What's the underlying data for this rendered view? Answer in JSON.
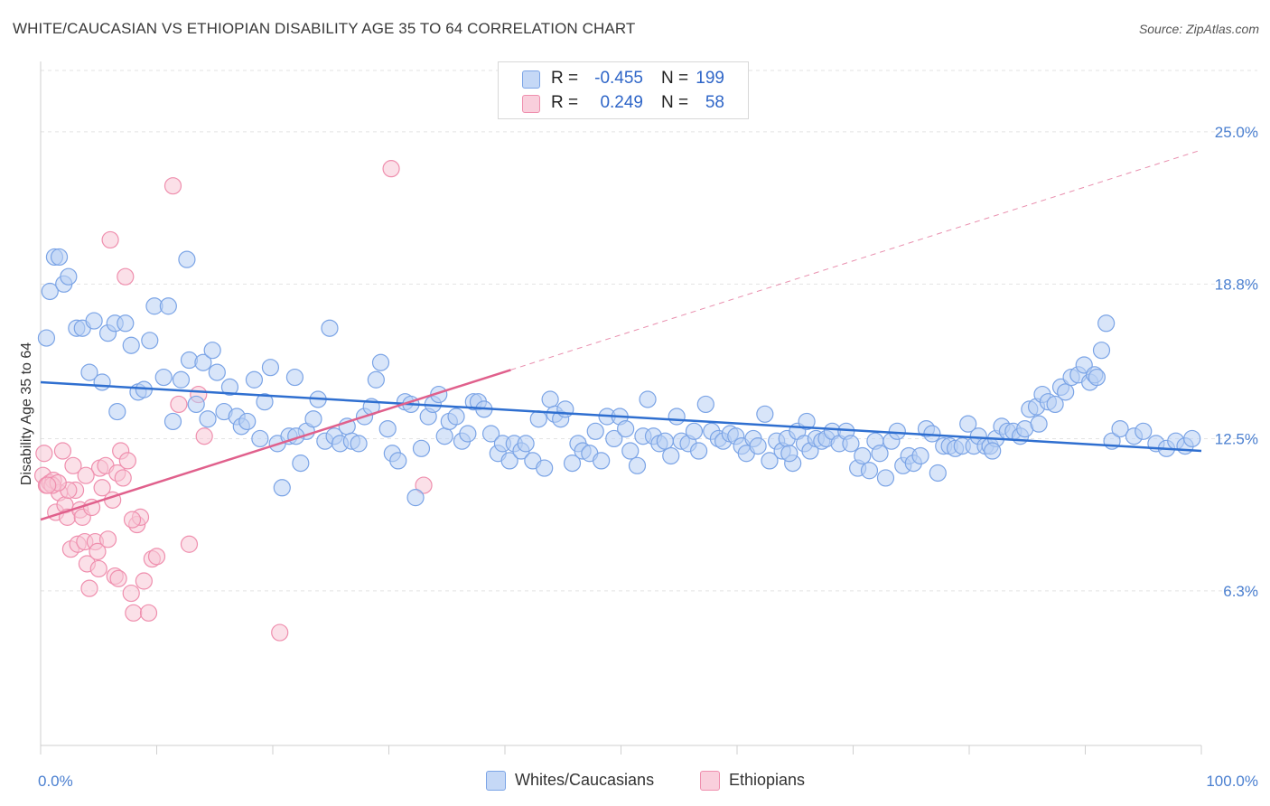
{
  "header": {
    "title": "WHITE/CAUCASIAN VS ETHIOPIAN DISABILITY AGE 35 TO 64 CORRELATION CHART",
    "source": "Source: ZipAtlas.com"
  },
  "legend": {
    "rows": [
      {
        "r_label": "R =",
        "r_value": "-0.455",
        "n_label": "N =",
        "n_value": "199",
        "color": "#9dbdf0"
      },
      {
        "r_label": "R =",
        "r_value": "0.249",
        "n_label": "N =",
        "n_value": "58",
        "color": "#f5a9c0"
      }
    ]
  },
  "bottom_legend": {
    "items": [
      {
        "label": "Whites/Caucasians",
        "color": "#9dbdf0"
      },
      {
        "label": "Ethiopians",
        "color": "#f5a9c0"
      }
    ]
  },
  "colors": {
    "blue_fill": "#b8d0f4",
    "blue_stroke": "#7ba4e6",
    "blue_line": "#2f6fd0",
    "pink_fill": "#f8c6d5",
    "pink_stroke": "#ef8fae",
    "pink_line": "#e0608c",
    "grid": "#e3e3e3",
    "tick_text": "#4a7fd0"
  },
  "chart_data": {
    "type": "scatter",
    "title": "WHITE/CAUCASIAN VS ETHIOPIAN DISABILITY AGE 35 TO 64 CORRELATION CHART",
    "xlabel": "",
    "ylabel": "Disability Age 35 to 64",
    "xlim": [
      0,
      100
    ],
    "ylim": [
      0,
      27.5
    ],
    "x_tick_labels": [
      "0.0%",
      "100.0%"
    ],
    "y_ticks": [
      6.3,
      12.5,
      18.8,
      25.0
    ],
    "y_tick_labels": [
      "6.3%",
      "12.5%",
      "18.8%",
      "25.0%"
    ],
    "grid": true,
    "legend_position": "top-center",
    "series": [
      {
        "name": "Whites/Caucasians",
        "trend": {
          "x": [
            0,
            100
          ],
          "y": [
            14.8,
            12.0
          ]
        },
        "points": [
          [
            0.5,
            16.6
          ],
          [
            0.8,
            18.5
          ],
          [
            1.2,
            19.9
          ],
          [
            1.6,
            19.9
          ],
          [
            2.0,
            18.8
          ],
          [
            2.4,
            19.1
          ],
          [
            3.1,
            17.0
          ],
          [
            3.6,
            17.0
          ],
          [
            4.2,
            15.2
          ],
          [
            4.6,
            17.3
          ],
          [
            5.3,
            14.8
          ],
          [
            5.8,
            16.8
          ],
          [
            6.4,
            17.2
          ],
          [
            6.6,
            13.6
          ],
          [
            7.3,
            17.2
          ],
          [
            7.8,
            16.3
          ],
          [
            8.4,
            14.4
          ],
          [
            8.9,
            14.5
          ],
          [
            9.4,
            16.5
          ],
          [
            9.8,
            17.9
          ],
          [
            10.6,
            15.0
          ],
          [
            11.0,
            17.9
          ],
          [
            11.4,
            13.2
          ],
          [
            12.1,
            14.9
          ],
          [
            12.6,
            19.8
          ],
          [
            12.8,
            15.7
          ],
          [
            13.4,
            13.9
          ],
          [
            14.0,
            15.6
          ],
          [
            14.4,
            13.3
          ],
          [
            14.8,
            16.1
          ],
          [
            15.2,
            15.2
          ],
          [
            15.8,
            13.6
          ],
          [
            16.3,
            14.6
          ],
          [
            16.9,
            13.4
          ],
          [
            17.3,
            13.0
          ],
          [
            17.8,
            13.2
          ],
          [
            18.4,
            14.9
          ],
          [
            18.9,
            12.5
          ],
          [
            19.3,
            14.0
          ],
          [
            19.8,
            15.4
          ],
          [
            20.4,
            12.3
          ],
          [
            20.8,
            10.5
          ],
          [
            21.4,
            12.6
          ],
          [
            21.9,
            15.0
          ],
          [
            22.4,
            11.5
          ],
          [
            22.9,
            12.8
          ],
          [
            23.5,
            13.3
          ],
          [
            23.9,
            14.1
          ],
          [
            24.5,
            12.4
          ],
          [
            24.9,
            17.0
          ],
          [
            25.3,
            12.6
          ],
          [
            25.8,
            12.3
          ],
          [
            26.4,
            13.0
          ],
          [
            26.8,
            12.4
          ],
          [
            27.4,
            12.3
          ],
          [
            27.9,
            13.4
          ],
          [
            28.5,
            13.8
          ],
          [
            28.9,
            14.9
          ],
          [
            29.3,
            15.6
          ],
          [
            29.9,
            12.9
          ],
          [
            30.3,
            11.9
          ],
          [
            30.8,
            11.6
          ],
          [
            31.4,
            14.0
          ],
          [
            31.9,
            13.9
          ],
          [
            32.3,
            10.1
          ],
          [
            32.8,
            12.1
          ],
          [
            33.4,
            13.4
          ],
          [
            33.8,
            13.9
          ],
          [
            34.3,
            14.3
          ],
          [
            34.8,
            12.6
          ],
          [
            35.2,
            13.2
          ],
          [
            35.8,
            13.4
          ],
          [
            36.3,
            12.4
          ],
          [
            36.8,
            12.7
          ],
          [
            37.3,
            14.0
          ],
          [
            37.7,
            14.0
          ],
          [
            38.2,
            13.7
          ],
          [
            38.8,
            12.7
          ],
          [
            39.4,
            11.9
          ],
          [
            39.8,
            12.3
          ],
          [
            40.4,
            11.6
          ],
          [
            40.8,
            12.3
          ],
          [
            41.4,
            12.0
          ],
          [
            41.8,
            12.3
          ],
          [
            42.4,
            11.6
          ],
          [
            42.9,
            13.3
          ],
          [
            43.4,
            11.3
          ],
          [
            43.9,
            14.1
          ],
          [
            44.3,
            13.5
          ],
          [
            44.8,
            13.3
          ],
          [
            45.2,
            13.7
          ],
          [
            45.8,
            11.5
          ],
          [
            46.3,
            12.3
          ],
          [
            46.7,
            12.0
          ],
          [
            47.3,
            11.9
          ],
          [
            47.8,
            12.8
          ],
          [
            48.3,
            11.6
          ],
          [
            48.8,
            13.4
          ],
          [
            49.4,
            12.5
          ],
          [
            49.9,
            13.4
          ],
          [
            50.4,
            12.9
          ],
          [
            50.8,
            12.0
          ],
          [
            51.4,
            11.4
          ],
          [
            51.9,
            12.6
          ],
          [
            52.3,
            14.1
          ],
          [
            52.8,
            12.6
          ],
          [
            53.3,
            12.3
          ],
          [
            53.8,
            12.4
          ],
          [
            54.3,
            11.8
          ],
          [
            54.8,
            13.4
          ],
          [
            55.2,
            12.4
          ],
          [
            55.8,
            12.3
          ],
          [
            56.3,
            12.8
          ],
          [
            56.7,
            12.0
          ],
          [
            57.3,
            13.9
          ],
          [
            57.8,
            12.8
          ],
          [
            58.4,
            12.5
          ],
          [
            58.8,
            12.4
          ],
          [
            59.4,
            12.7
          ],
          [
            59.9,
            12.6
          ],
          [
            60.4,
            12.2
          ],
          [
            60.8,
            11.9
          ],
          [
            61.4,
            12.5
          ],
          [
            61.8,
            12.2
          ],
          [
            62.4,
            13.5
          ],
          [
            62.8,
            11.6
          ],
          [
            63.4,
            12.4
          ],
          [
            63.9,
            12.0
          ],
          [
            64.3,
            12.5
          ],
          [
            64.8,
            11.5
          ],
          [
            65.2,
            12.8
          ],
          [
            65.8,
            12.3
          ],
          [
            66.3,
            12.0
          ],
          [
            66.8,
            12.5
          ],
          [
            67.3,
            12.4
          ],
          [
            67.7,
            12.5
          ],
          [
            68.2,
            12.8
          ],
          [
            68.8,
            12.3
          ],
          [
            69.4,
            12.8
          ],
          [
            69.8,
            12.3
          ],
          [
            70.4,
            11.3
          ],
          [
            70.8,
            11.8
          ],
          [
            71.4,
            11.2
          ],
          [
            71.9,
            12.4
          ],
          [
            72.3,
            11.9
          ],
          [
            72.8,
            10.9
          ],
          [
            73.3,
            12.4
          ],
          [
            73.8,
            12.8
          ],
          [
            74.3,
            11.4
          ],
          [
            74.8,
            11.8
          ],
          [
            75.2,
            11.5
          ],
          [
            75.8,
            11.8
          ],
          [
            76.3,
            12.9
          ],
          [
            76.8,
            12.7
          ],
          [
            77.3,
            11.1
          ],
          [
            77.8,
            12.2
          ],
          [
            78.3,
            12.2
          ],
          [
            78.8,
            12.1
          ],
          [
            79.4,
            12.2
          ],
          [
            79.9,
            13.1
          ],
          [
            80.4,
            12.2
          ],
          [
            80.8,
            12.6
          ],
          [
            81.4,
            12.2
          ],
          [
            81.8,
            12.2
          ],
          [
            82.3,
            12.5
          ],
          [
            82.8,
            13.0
          ],
          [
            83.3,
            12.8
          ],
          [
            83.8,
            12.8
          ],
          [
            84.4,
            12.6
          ],
          [
            84.8,
            12.9
          ],
          [
            85.2,
            13.7
          ],
          [
            85.8,
            13.8
          ],
          [
            86.3,
            14.3
          ],
          [
            86.8,
            14.0
          ],
          [
            87.4,
            13.9
          ],
          [
            87.9,
            14.6
          ],
          [
            88.3,
            14.4
          ],
          [
            88.8,
            15.0
          ],
          [
            89.4,
            15.1
          ],
          [
            89.9,
            15.5
          ],
          [
            90.4,
            14.8
          ],
          [
            90.8,
            15.1
          ],
          [
            91.4,
            16.1
          ],
          [
            91.8,
            17.2
          ],
          [
            92.3,
            12.4
          ],
          [
            93.0,
            12.9
          ],
          [
            94.2,
            12.6
          ],
          [
            95.0,
            12.8
          ],
          [
            96.1,
            12.3
          ],
          [
            97.0,
            12.1
          ],
          [
            97.8,
            12.4
          ],
          [
            98.6,
            12.2
          ],
          [
            99.2,
            12.5
          ],
          [
            64.5,
            11.9
          ],
          [
            66.0,
            13.2
          ],
          [
            82.0,
            12.0
          ],
          [
            86.0,
            13.1
          ],
          [
            91.0,
            15.0
          ],
          [
            22.0,
            12.6
          ]
        ]
      },
      {
        "name": "Ethiopians",
        "trend": {
          "x": [
            0,
            40.5
          ],
          "y": [
            9.2,
            15.3
          ]
        },
        "points": [
          [
            0.2,
            11.0
          ],
          [
            0.5,
            10.6
          ],
          [
            0.8,
            10.7
          ],
          [
            1.1,
            10.8
          ],
          [
            1.3,
            9.5
          ],
          [
            1.6,
            10.3
          ],
          [
            1.9,
            12.0
          ],
          [
            2.1,
            9.8
          ],
          [
            2.3,
            9.3
          ],
          [
            2.6,
            8.0
          ],
          [
            2.8,
            11.4
          ],
          [
            3.0,
            10.4
          ],
          [
            3.2,
            8.2
          ],
          [
            3.4,
            9.6
          ],
          [
            3.6,
            9.3
          ],
          [
            3.8,
            8.3
          ],
          [
            4.0,
            7.4
          ],
          [
            4.2,
            6.4
          ],
          [
            4.4,
            9.7
          ],
          [
            4.7,
            8.3
          ],
          [
            4.9,
            7.9
          ],
          [
            5.1,
            11.3
          ],
          [
            5.3,
            10.5
          ],
          [
            5.6,
            11.4
          ],
          [
            5.8,
            8.4
          ],
          [
            6.0,
            20.6
          ],
          [
            6.2,
            10.0
          ],
          [
            6.4,
            6.9
          ],
          [
            6.6,
            11.1
          ],
          [
            6.9,
            12.0
          ],
          [
            7.1,
            10.9
          ],
          [
            7.3,
            19.1
          ],
          [
            7.5,
            11.6
          ],
          [
            7.8,
            6.2
          ],
          [
            8.0,
            5.4
          ],
          [
            8.3,
            9.0
          ],
          [
            8.6,
            9.3
          ],
          [
            8.9,
            6.7
          ],
          [
            9.3,
            5.4
          ],
          [
            9.6,
            7.6
          ],
          [
            10.0,
            7.7
          ],
          [
            11.4,
            22.8
          ],
          [
            11.9,
            13.9
          ],
          [
            12.8,
            8.2
          ],
          [
            13.6,
            14.3
          ],
          [
            14.1,
            12.6
          ],
          [
            20.6,
            4.6
          ],
          [
            30.2,
            23.5
          ],
          [
            33.0,
            10.6
          ],
          [
            0.3,
            11.9
          ],
          [
            1.0,
            10.6
          ],
          [
            2.4,
            10.4
          ],
          [
            3.9,
            11.0
          ],
          [
            5.0,
            7.2
          ],
          [
            6.7,
            6.8
          ],
          [
            7.9,
            9.2
          ],
          [
            1.5,
            10.7
          ],
          [
            0.6,
            10.6
          ]
        ]
      }
    ]
  }
}
